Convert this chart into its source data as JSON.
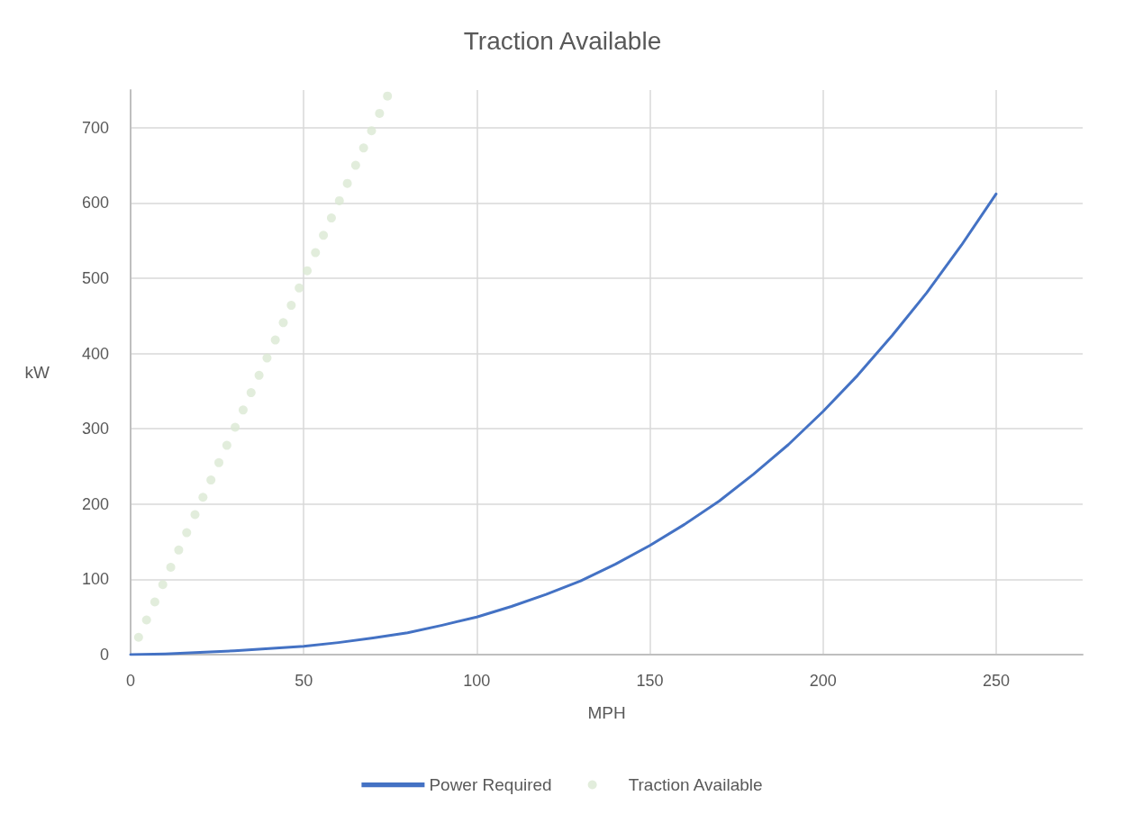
{
  "chart_data": {
    "type": "line",
    "title": "Traction Available",
    "xlabel": "MPH",
    "ylabel": "kW",
    "xlim": [
      0,
      275
    ],
    "xticks": [
      0,
      50,
      100,
      150,
      200,
      250
    ],
    "ylim": [
      0,
      750
    ],
    "yticks": [
      0,
      100,
      200,
      300,
      400,
      500,
      600,
      700
    ],
    "grid": true,
    "legend": "bottom",
    "series": [
      {
        "name": "Power Required",
        "color": "#4472c4",
        "marker": "none",
        "line_style": "solid",
        "x": [
          0,
          10,
          20,
          30,
          40,
          50,
          60,
          70,
          80,
          90,
          100,
          110,
          120,
          130,
          140,
          150,
          160,
          170,
          180,
          190,
          200,
          210,
          220,
          230,
          240,
          250
        ],
        "values": [
          0,
          1,
          3,
          5,
          8,
          11,
          16,
          22,
          29,
          39,
          50,
          64,
          80,
          98,
          120,
          145,
          173,
          204,
          240,
          279,
          323,
          371,
          424,
          481,
          544,
          612
        ]
      },
      {
        "name": "Traction Available",
        "type": "scatter",
        "color": "#dbe9d3",
        "marker": "circle",
        "x": [
          2.3,
          4.6,
          7,
          9.3,
          11.6,
          13.9,
          16.2,
          18.6,
          20.9,
          23.2,
          25.5,
          27.8,
          30.2,
          32.5,
          34.8,
          37.1,
          39.4,
          41.8,
          44.1,
          46.4,
          48.7,
          51,
          53.4,
          55.7,
          58,
          60.3,
          62.6,
          65,
          67.3,
          69.6,
          71.9,
          74.2
        ],
        "values": [
          23,
          46,
          70,
          93,
          116,
          139,
          162,
          186,
          209,
          232,
          255,
          278,
          302,
          325,
          348,
          371,
          394,
          418,
          441,
          464,
          487,
          510,
          534,
          557,
          580,
          603,
          626,
          650,
          673,
          696,
          719,
          742
        ]
      }
    ]
  }
}
